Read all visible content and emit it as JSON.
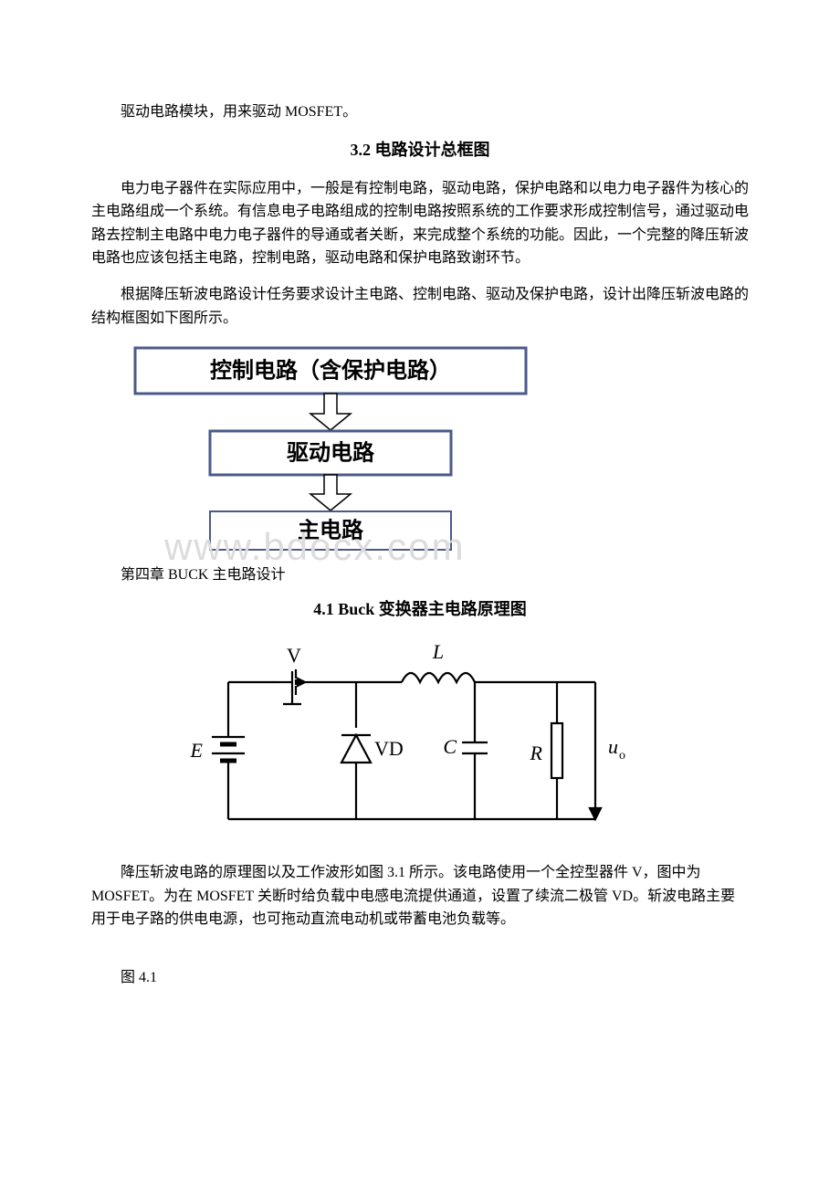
{
  "p1": "驱动电路模块，用来驱动 MOSFET。",
  "h1": "3.2 电路设计总框图",
  "p2": "电力电子器件在实际应用中，一般是有控制电路，驱动电路，保护电路和以电力电子器件为核心的主电路组成一个系统。有信息电子电路组成的控制电路按照系统的工作要求形成控制信号，通过驱动电路去控制主电路中电力电子器件的导通或者关断，来完成整个系统的功能。因此，一个完整的降压斩波电路也应该包括主电路，控制电路，驱动电路和保护电路致谢环节。",
  "p3": "根据降压斩波电路设计任务要求设计主电路、控制电路、驱动及保护电路，设计出降压斩波电路的结构框图如下图所示。",
  "h2": "第四章 BUCK 主电路设计",
  "h3": "4.1 Buck 变换器主电路原理图",
  "p4": "降压斩波电路的原理图以及工作波形如图 3.1 所示。该电路使用一个全控型器件 V，图中为 MOSFET。为在 MOSFET 关断时给负载中电感电流提供通道，设置了续流二极管 VD。斩波电路主要用于电子路的供电电源，也可拖动直流电动机或带蓄电池负载等。",
  "caption": "图 4.1",
  "watermark": "www.bdocx.com",
  "block": {
    "box1": "控制电路（含保护电路）",
    "box2": "驱动电路",
    "box3": "主电路",
    "box_stroke": "#4a5a8a",
    "box_fill": "#ffffff",
    "text_color": "#000000",
    "arrow_fill": "#ffffff",
    "arrow_stroke": "#000000",
    "font_size": 24,
    "font_family": "SimHei"
  },
  "circuit": {
    "labels": {
      "V": "V",
      "L": "L",
      "E": "E",
      "VD": "VD",
      "C": "C",
      "R": "R",
      "uo": "u",
      "uo_sub": "o"
    },
    "stroke": "#000000",
    "stroke_width": 2.2,
    "font_size": 22,
    "font_family": "Times New Roman"
  }
}
